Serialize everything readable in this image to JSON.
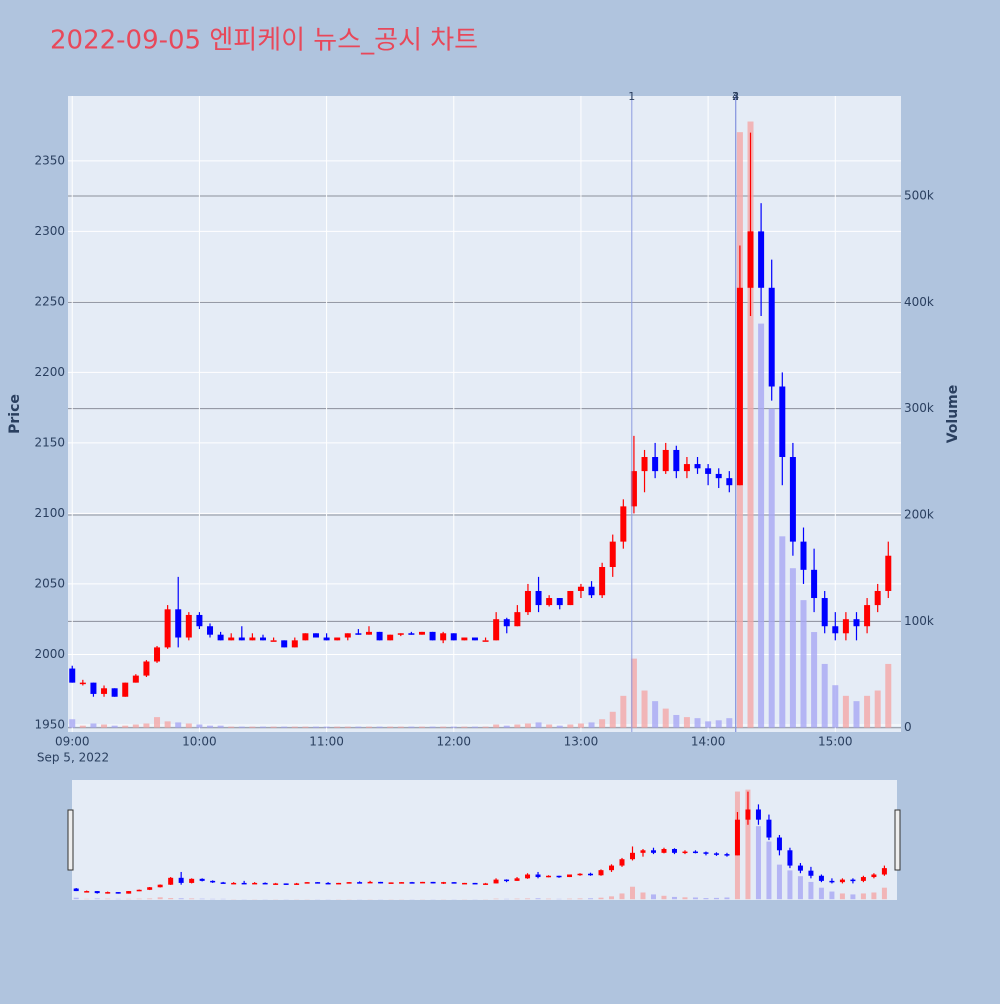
{
  "chart_data": {
    "type": "candlestick",
    "title": "2022-09-05 엔피케이 뉴스_공시 차트",
    "ylabel": "Price",
    "y2label": "Volume",
    "x_date_label": "Sep 5, 2022",
    "x": [
      "09:00",
      "09:05",
      "09:10",
      "09:15",
      "09:20",
      "09:25",
      "09:30",
      "09:35",
      "09:40",
      "09:45",
      "09:50",
      "09:55",
      "10:00",
      "10:05",
      "10:10",
      "10:15",
      "10:20",
      "10:25",
      "10:30",
      "10:35",
      "10:40",
      "10:45",
      "10:50",
      "10:55",
      "11:00",
      "11:05",
      "11:10",
      "11:15",
      "11:20",
      "11:25",
      "11:30",
      "11:35",
      "11:40",
      "11:45",
      "11:50",
      "11:55",
      "12:00",
      "12:05",
      "12:10",
      "12:15",
      "12:20",
      "12:25",
      "12:30",
      "12:35",
      "12:40",
      "12:45",
      "12:50",
      "12:55",
      "13:00",
      "13:05",
      "13:10",
      "13:15",
      "13:20",
      "13:25",
      "13:30",
      "13:35",
      "13:40",
      "13:45",
      "13:50",
      "13:55",
      "14:00",
      "14:05",
      "14:10",
      "14:15",
      "14:20",
      "14:25",
      "14:30",
      "14:35",
      "14:40",
      "14:45",
      "14:50",
      "14:55",
      "15:00",
      "15:05",
      "15:10",
      "15:15",
      "15:20",
      "15:25"
    ],
    "open": [
      1990,
      1980,
      1980,
      1972,
      1976,
      1970,
      1980,
      1985,
      1995,
      2005,
      2032,
      2012,
      2028,
      2020,
      2014,
      2010,
      2012,
      2010,
      2012,
      2010,
      2010,
      2005,
      2010,
      2015,
      2012,
      2010,
      2012,
      2015,
      2014,
      2016,
      2010,
      2014,
      2015,
      2014,
      2016,
      2010,
      2015,
      2010,
      2012,
      2010,
      2010,
      2025,
      2020,
      2030,
      2045,
      2035,
      2040,
      2035,
      2045,
      2048,
      2042,
      2062,
      2080,
      2105,
      2130,
      2140,
      2130,
      2145,
      2130,
      2135,
      2132,
      2128,
      2125,
      2120,
      2260,
      2300,
      2260,
      2190,
      2140,
      2080,
      2060,
      2040,
      2020,
      2015,
      2025,
      2020,
      2035,
      2045
    ],
    "high": [
      1992,
      1982,
      1980,
      1978,
      1976,
      1980,
      1986,
      1996,
      2006,
      2035,
      2055,
      2030,
      2030,
      2022,
      2016,
      2015,
      2020,
      2015,
      2014,
      2012,
      2010,
      2012,
      2015,
      2015,
      2015,
      2012,
      2015,
      2018,
      2020,
      2016,
      2014,
      2015,
      2016,
      2016,
      2016,
      2016,
      2015,
      2012,
      2012,
      2012,
      2030,
      2026,
      2035,
      2050,
      2055,
      2042,
      2040,
      2045,
      2050,
      2052,
      2065,
      2085,
      2110,
      2155,
      2145,
      2150,
      2150,
      2148,
      2140,
      2140,
      2135,
      2132,
      2130,
      2290,
      2370,
      2320,
      2280,
      2200,
      2150,
      2090,
      2075,
      2045,
      2030,
      2030,
      2030,
      2040,
      2050,
      2080
    ],
    "low": [
      1980,
      1978,
      1970,
      1970,
      1970,
      1970,
      1980,
      1984,
      1994,
      2004,
      2005,
      2010,
      2018,
      2012,
      2010,
      2010,
      2010,
      2010,
      2010,
      2010,
      2005,
      2005,
      2010,
      2012,
      2010,
      2010,
      2010,
      2014,
      2014,
      2010,
      2010,
      2013,
      2014,
      2014,
      2010,
      2008,
      2010,
      2010,
      2010,
      2010,
      2010,
      2015,
      2020,
      2028,
      2030,
      2034,
      2032,
      2035,
      2040,
      2040,
      2040,
      2055,
      2075,
      2100,
      2115,
      2125,
      2128,
      2125,
      2125,
      2128,
      2120,
      2118,
      2115,
      2120,
      2240,
      2240,
      2180,
      2120,
      2070,
      2050,
      2030,
      2015,
      2010,
      2010,
      2010,
      2015,
      2030,
      2040
    ],
    "close": [
      1980,
      1980,
      1972,
      1976,
      1970,
      1980,
      1985,
      1995,
      2005,
      2032,
      2012,
      2028,
      2020,
      2014,
      2010,
      2012,
      2010,
      2012,
      2010,
      2010,
      2005,
      2010,
      2015,
      2012,
      2010,
      2012,
      2015,
      2014,
      2016,
      2010,
      2014,
      2015,
      2014,
      2016,
      2010,
      2015,
      2010,
      2012,
      2010,
      2010,
      2025,
      2020,
      2030,
      2045,
      2035,
      2040,
      2035,
      2045,
      2048,
      2042,
      2062,
      2080,
      2105,
      2130,
      2140,
      2130,
      2145,
      2130,
      2135,
      2132,
      2128,
      2125,
      2120,
      2260,
      2300,
      2260,
      2190,
      2140,
      2080,
      2060,
      2040,
      2020,
      2015,
      2025,
      2020,
      2035,
      2045,
      2070
    ],
    "volume": [
      8000,
      2000,
      4000,
      3000,
      2000,
      2000,
      3000,
      4000,
      10000,
      6000,
      5000,
      4000,
      3000,
      2000,
      2000,
      1000,
      1000,
      1000,
      1000,
      1000,
      1000,
      1000,
      1000,
      1000,
      1000,
      1000,
      1000,
      1000,
      1000,
      1000,
      1000,
      1000,
      1000,
      1000,
      1000,
      1000,
      1000,
      1000,
      1000,
      1000,
      3000,
      2000,
      3000,
      4000,
      5000,
      3000,
      2000,
      3000,
      4000,
      5000,
      8000,
      15000,
      30000,
      65000,
      35000,
      25000,
      18000,
      12000,
      10000,
      9000,
      6000,
      7000,
      9000,
      560000,
      570000,
      380000,
      300000,
      180000,
      150000,
      120000,
      90000,
      60000,
      40000,
      30000,
      25000,
      30000,
      35000,
      60000
    ],
    "increasing_color": "#ff0000",
    "decreasing_color": "#0000ff",
    "volume_increasing_color": "#f4a8a8",
    "volume_decreasing_color": "#a8a8f4",
    "xlim": [
      "08:58",
      "15:31"
    ],
    "xticks": [
      "09:00",
      "10:00",
      "11:00",
      "12:00",
      "13:00",
      "14:00",
      "15:00"
    ],
    "ylim": [
      1945,
      2396
    ],
    "yticks": [
      1950,
      2000,
      2050,
      2100,
      2150,
      2200,
      2250,
      2300,
      2350
    ],
    "y2lim": [
      -4000,
      594000
    ],
    "y2ticks": [
      0,
      {
        "value": 100000,
        "label": "100k"
      },
      {
        "value": 200000,
        "label": "200k"
      },
      {
        "value": 300000,
        "label": "300k"
      },
      {
        "value": 400000,
        "label": "400k"
      },
      {
        "value": 500000,
        "label": "500k"
      }
    ],
    "vlines": [
      {
        "x": "13:24",
        "label": "1"
      },
      {
        "x": "14:13",
        "label": "2"
      },
      {
        "x": "14:13",
        "label": "3"
      },
      {
        "x": "14:13",
        "label": "4"
      }
    ],
    "vline_color": "#8c9be0",
    "grid": true
  }
}
